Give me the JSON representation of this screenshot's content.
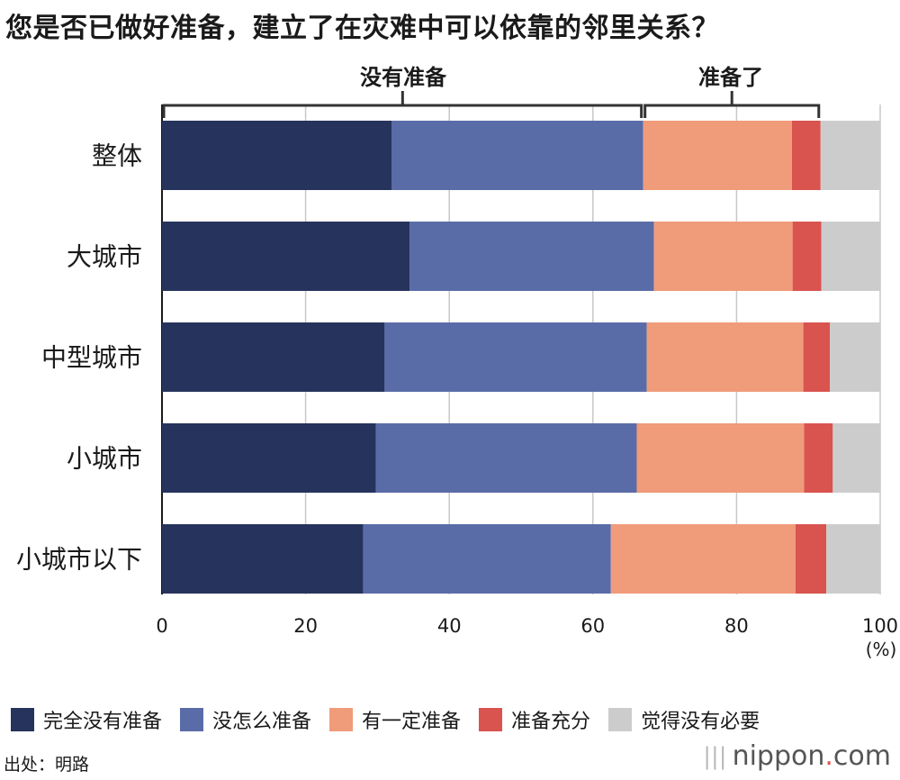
{
  "title": "您是否已做好准备，建立了在灾难中可以依靠的邻里关系？",
  "brackets": {
    "not_ready": "没有准备",
    "ready": "准备了"
  },
  "axis": {
    "unit": "(%)"
  },
  "source": "出处：明路",
  "brand": {
    "name": "nippon",
    "dot": ".",
    "tld": "com"
  },
  "chart_data": {
    "type": "bar",
    "orientation": "horizontal",
    "stacked": true,
    "categories": [
      "整体",
      "大城市",
      "中型城市",
      "小城市",
      "小城市以下"
    ],
    "series": [
      {
        "name": "完全没有准备",
        "color": "#26335c",
        "values": [
          32,
          34.5,
          31,
          29.8,
          28
        ]
      },
      {
        "name": "没怎么准备",
        "color": "#5a6ca8",
        "values": [
          35,
          34,
          36.5,
          36.3,
          34.5
        ]
      },
      {
        "name": "有一定准备",
        "color": "#f09b7a",
        "values": [
          20.7,
          19.3,
          21.8,
          23.3,
          25.7
        ]
      },
      {
        "name": "准备充分",
        "color": "#d9534f",
        "values": [
          4,
          4,
          3.7,
          4,
          4.3
        ]
      },
      {
        "name": "觉得没有必要",
        "color": "#cccccc",
        "values": [
          8.3,
          8.2,
          7,
          6.6,
          7.5
        ]
      }
    ],
    "xlim": [
      0,
      100
    ],
    "xticks": [
      0,
      20,
      40,
      60,
      80,
      100
    ],
    "grid": true,
    "legend": "bottom"
  }
}
